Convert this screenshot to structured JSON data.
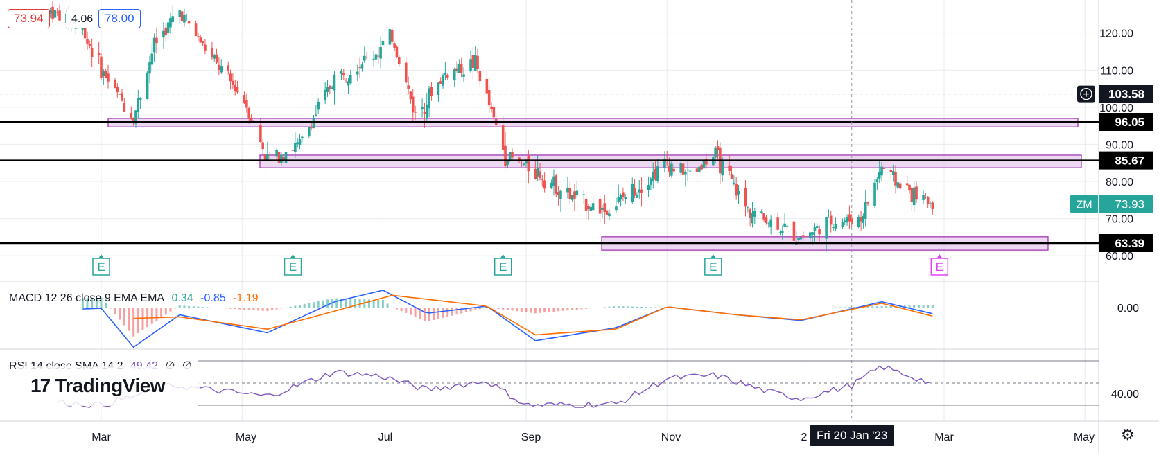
{
  "legend": {
    "open_value": "73.94",
    "change": "4.06",
    "close_value": "78.00"
  },
  "price_axis": {
    "ticks": [
      {
        "label": "120.00",
        "v": 120
      },
      {
        "label": "110.00",
        "v": 110
      },
      {
        "label": "100.00",
        "v": 100
      },
      {
        "label": "90.00",
        "v": 90
      },
      {
        "label": "80.00",
        "v": 80
      },
      {
        "label": "70.00",
        "v": 70
      },
      {
        "label": "60.00",
        "v": 60
      }
    ],
    "crosshair_price": "103.58",
    "level_labels": [
      "96.05",
      "85.67",
      "63.39"
    ],
    "symbol": "ZM",
    "last_price": "73.93"
  },
  "time_axis": {
    "labels": [
      "Mar",
      "May",
      "Jul",
      "Sep",
      "Nov",
      "Mar",
      "May"
    ],
    "crosshair_date": "Fri 20 Jan '23",
    "partial_label": "2"
  },
  "earnings_marker": "E",
  "macd": {
    "title": "MACD 12 26 close 9 EMA EMA",
    "histogram": "0.34",
    "macd": "-0.85",
    "signal": "-1.19",
    "zero_label": "0.00"
  },
  "rsi": {
    "title": "RSI 14 close SMA 14 2",
    "value": "49.42",
    "extra1": "∅",
    "extra2": "∅",
    "axis_label": "40.00"
  },
  "branding": {
    "logo_text": "TradingView"
  },
  "colors": {
    "up": "#26a69a",
    "down": "#ef5350",
    "zone_fill": "#e1bee7",
    "zone_stroke": "#9c27b0",
    "macd_line": "#2962ff",
    "signal_line": "#ff6d00",
    "rsi_line": "#7e57c2",
    "symbol_tag": "#26a69a"
  },
  "chart_data": {
    "type": "candlestick",
    "symbol": "ZM",
    "price_levels": [
      96.05,
      85.67,
      63.39
    ],
    "zones": [
      {
        "from": 94.7,
        "to": 97.0,
        "start": "2022-03-01",
        "end": "2023-04-30"
      },
      {
        "from": 83.7,
        "to": 87.1,
        "start": "2022-05-01",
        "end": "2023-05-01"
      },
      {
        "from": 61.5,
        "to": 65.1,
        "start": "2022-09-20",
        "end": "2023-04-20"
      }
    ],
    "earnings_dates": [
      "2022-03-01",
      "2022-05-23",
      "2022-08-22",
      "2022-11-21",
      "2023-02-27"
    ],
    "closes": [
      {
        "date": "2022-02-07",
        "close": 126
      },
      {
        "date": "2022-02-21",
        "close": 121
      },
      {
        "date": "2022-03-01",
        "close": 110
      },
      {
        "date": "2022-03-15",
        "close": 97
      },
      {
        "date": "2022-03-24",
        "close": 117
      },
      {
        "date": "2022-04-04",
        "close": 126
      },
      {
        "date": "2022-04-18",
        "close": 113
      },
      {
        "date": "2022-05-02",
        "close": 102
      },
      {
        "date": "2022-05-12",
        "close": 86
      },
      {
        "date": "2022-05-26",
        "close": 90
      },
      {
        "date": "2022-06-10",
        "close": 108
      },
      {
        "date": "2022-06-27",
        "close": 114
      },
      {
        "date": "2022-07-05",
        "close": 119
      },
      {
        "date": "2022-07-15",
        "close": 98
      },
      {
        "date": "2022-07-28",
        "close": 109
      },
      {
        "date": "2022-08-10",
        "close": 112
      },
      {
        "date": "2022-08-23",
        "close": 87
      },
      {
        "date": "2022-09-05",
        "close": 83
      },
      {
        "date": "2022-09-20",
        "close": 76
      },
      {
        "date": "2022-10-06",
        "close": 72
      },
      {
        "date": "2022-10-20",
        "close": 79
      },
      {
        "date": "2022-11-01",
        "close": 85
      },
      {
        "date": "2022-11-10",
        "close": 82
      },
      {
        "date": "2022-11-22",
        "close": 87
      },
      {
        "date": "2022-12-05",
        "close": 73
      },
      {
        "date": "2022-12-19",
        "close": 68
      },
      {
        "date": "2022-12-29",
        "close": 65
      },
      {
        "date": "2023-01-10",
        "close": 69
      },
      {
        "date": "2023-01-24",
        "close": 70
      },
      {
        "date": "2023-02-02",
        "close": 84
      },
      {
        "date": "2023-02-10",
        "close": 79
      },
      {
        "date": "2023-02-17",
        "close": 76
      },
      {
        "date": "2023-02-24",
        "close": 74
      }
    ],
    "macd_series": [
      {
        "date": "2022-02-21",
        "macd": -0.2
      },
      {
        "date": "2022-03-01",
        "macd": -0.1
      },
      {
        "date": "2022-03-15",
        "macd": -5.5
      },
      {
        "date": "2022-04-04",
        "macd": -1.0
      },
      {
        "date": "2022-05-12",
        "macd": -3.5
      },
      {
        "date": "2022-06-10",
        "macd": 0.8
      },
      {
        "date": "2022-07-01",
        "macd": 2.4
      },
      {
        "date": "2022-07-20",
        "macd": -0.8
      },
      {
        "date": "2022-08-15",
        "macd": 0.2
      },
      {
        "date": "2022-09-05",
        "macd": -4.6
      },
      {
        "date": "2022-10-10",
        "macd": -2.8
      },
      {
        "date": "2022-11-01",
        "macd": 0.1
      },
      {
        "date": "2022-12-01",
        "macd": -1.0
      },
      {
        "date": "2022-12-29",
        "macd": -1.8
      },
      {
        "date": "2023-02-02",
        "macd": 0.8
      },
      {
        "date": "2023-02-24",
        "macd": -0.85
      }
    ],
    "signal_series": [
      {
        "date": "2022-03-15",
        "signal": -1.5
      },
      {
        "date": "2022-04-04",
        "signal": -1.3
      },
      {
        "date": "2022-05-12",
        "signal": -3.0
      },
      {
        "date": "2022-06-10",
        "signal": -0.5
      },
      {
        "date": "2022-07-05",
        "signal": 1.7
      },
      {
        "date": "2022-08-15",
        "signal": 0.2
      },
      {
        "date": "2022-09-05",
        "signal": -3.8
      },
      {
        "date": "2022-10-10",
        "signal": -3.0
      },
      {
        "date": "2022-11-01",
        "signal": 0.1
      },
      {
        "date": "2022-12-01",
        "signal": -1.0
      },
      {
        "date": "2022-12-29",
        "signal": -1.7
      },
      {
        "date": "2023-02-02",
        "signal": 0.6
      },
      {
        "date": "2023-02-24",
        "signal": -1.19
      }
    ],
    "rsi_series": [
      {
        "date": "2022-02-10",
        "rsi": 33
      },
      {
        "date": "2022-03-01",
        "rsi": 30
      },
      {
        "date": "2022-04-01",
        "rsi": 48
      },
      {
        "date": "2022-05-12",
        "rsi": 38
      },
      {
        "date": "2022-06-10",
        "rsi": 60
      },
      {
        "date": "2022-07-01",
        "rsi": 56
      },
      {
        "date": "2022-07-20",
        "rsi": 44
      },
      {
        "date": "2022-08-15",
        "rsi": 52
      },
      {
        "date": "2022-09-01",
        "rsi": 30
      },
      {
        "date": "2022-10-10",
        "rsi": 31
      },
      {
        "date": "2022-11-01",
        "rsi": 54
      },
      {
        "date": "2022-11-22",
        "rsi": 57
      },
      {
        "date": "2022-12-15",
        "rsi": 42
      },
      {
        "date": "2022-12-29",
        "rsi": 36
      },
      {
        "date": "2023-01-20",
        "rsi": 48
      },
      {
        "date": "2023-02-02",
        "rsi": 65
      },
      {
        "date": "2023-02-24",
        "rsi": 49.42
      }
    ],
    "rsi_levels": [
      70,
      50,
      30
    ]
  }
}
